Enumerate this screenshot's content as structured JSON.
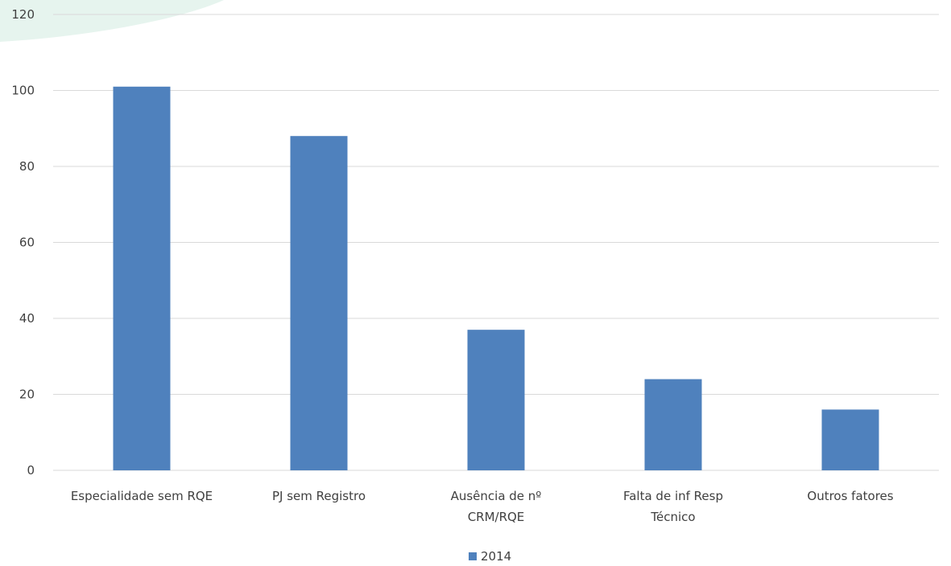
{
  "chart_data": {
    "type": "bar",
    "categories": [
      [
        "Especialidade sem RQE"
      ],
      [
        "PJ sem Registro"
      ],
      [
        "Ausência de nº",
        "CRM/RQE"
      ],
      [
        "Falta de inf Resp",
        "Técnico"
      ],
      [
        "Outros fatores"
      ]
    ],
    "series": [
      {
        "name": "2014",
        "values": [
          101,
          88,
          37,
          24,
          16
        ],
        "color": "#4f81bd"
      }
    ],
    "ylim": [
      0,
      120
    ],
    "yticks": [
      0,
      20,
      40,
      60,
      80,
      100,
      120
    ],
    "grid": true,
    "legend_position": "bottom",
    "gridline_color": "#d9d9d9",
    "text_color": "#404040",
    "decor_color": "#e6f4ee"
  }
}
